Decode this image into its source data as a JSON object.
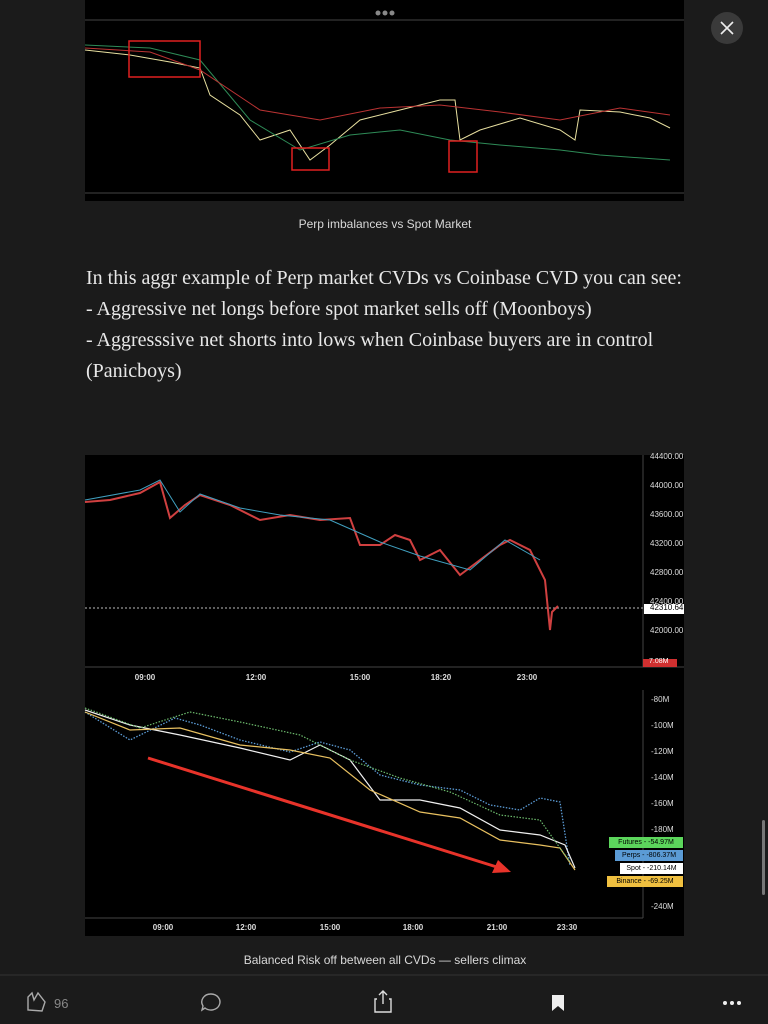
{
  "caption1": "Perp imbalances vs Spot Market",
  "paragraph": [
    "In this aggr example of Perp market CVDs vs Coinbase CVD you can see:",
    "- Aggressive net longs before spot market sells off (Moonboys)",
    "- Aggresssive net shorts into lows when Coinbase buyers are in control (Panicboys)"
  ],
  "price_chart": {
    "yticks": [
      "44400.00",
      "44000.00",
      "43600.00",
      "43200.00",
      "42800.00",
      "42400.00",
      "42000.00"
    ],
    "last_price": "42310.64",
    "volume_label": "7.08M",
    "xticks": [
      "09:00",
      "12:00",
      "15:00",
      "18:20",
      "23:00"
    ]
  },
  "cvd_chart": {
    "yticks": [
      "-80M",
      "-100M",
      "-120M",
      "-140M",
      "-160M",
      "-180M",
      "-240M"
    ],
    "legend": [
      "Futures - -54.97M",
      "Perps - -806.37M",
      "Spot - -210.14M",
      "Binance - -69.25M"
    ],
    "xticks": [
      "09:00",
      "12:00",
      "15:00",
      "18:00",
      "21:00",
      "23:30"
    ]
  },
  "caption2": "Balanced Risk off between all CVDs — sellers climax",
  "toolbar": {
    "claps": "96"
  }
}
